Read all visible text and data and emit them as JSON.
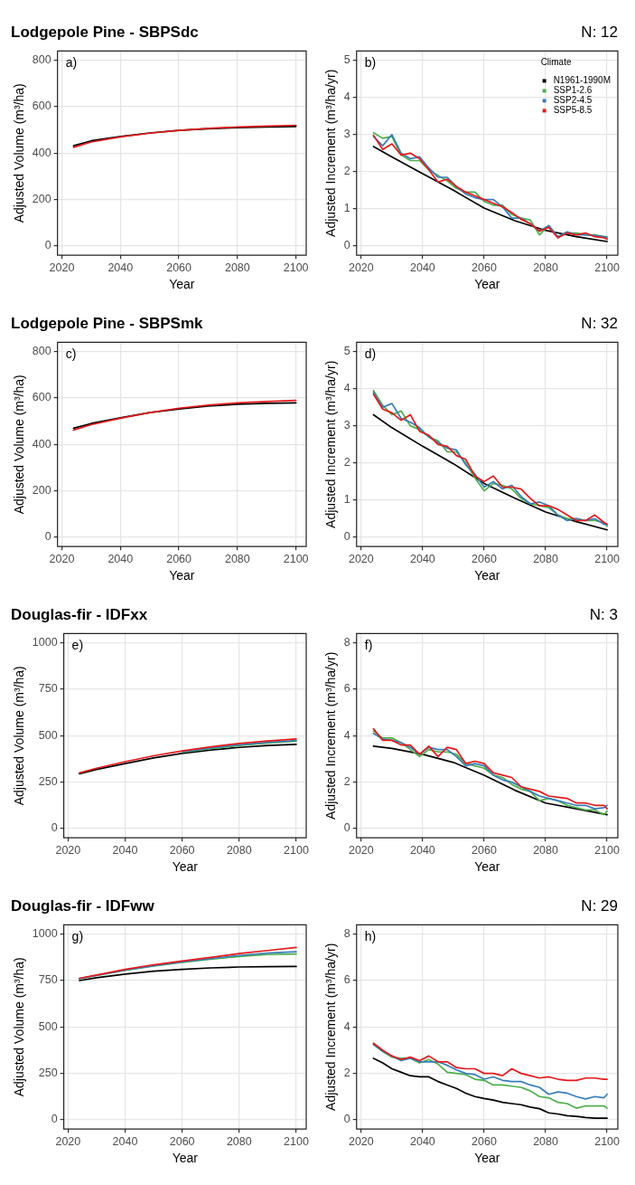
{
  "chart_data": [
    {
      "type": "line",
      "title": "Lodgepole Pine - SBPSdc",
      "xlabel": "Year",
      "ylabel": "Adjusted Volume (m³/ha)",
      "annotations": [
        "a)"
      ],
      "x": [
        2024,
        2030,
        2040,
        2050,
        2060,
        2070,
        2080,
        2090,
        2100
      ],
      "xlim": [
        2018.5,
        2103.5
      ],
      "xticks": [
        2020,
        2040,
        2060,
        2080,
        2100
      ],
      "ylim": [
        -40,
        840
      ],
      "yticks": [
        0,
        200,
        400,
        600,
        800
      ],
      "grid": true,
      "series": [
        {
          "color": "#000000",
          "values": [
            432,
            453,
            472,
            487,
            498,
            505,
            510,
            513,
            515
          ]
        },
        {
          "color": "#e41a1c",
          "values": [
            425,
            448,
            470,
            486,
            498,
            507,
            513,
            517,
            520
          ]
        }
      ]
    },
    {
      "type": "line",
      "title": "N: 12",
      "xlabel": "Year",
      "ylabel": "Adjusted Increment (m³/ha/yr)",
      "annotations": [
        "b)"
      ],
      "legend": "top right",
      "legend_title": "Climate",
      "x": [
        2024,
        2027,
        2030,
        2033,
        2036,
        2039,
        2042,
        2045,
        2048,
        2051,
        2054,
        2057,
        2060,
        2063,
        2066,
        2069,
        2072,
        2075,
        2078,
        2081,
        2084,
        2087,
        2090,
        2093,
        2096,
        2099,
        2100
      ],
      "xlim": [
        2018.5,
        2103.5
      ],
      "xticks": [
        2020,
        2040,
        2060,
        2080,
        2100
      ],
      "ylim": [
        -0.25,
        5.25
      ],
      "yticks": [
        0,
        1,
        2,
        3,
        4,
        5
      ],
      "grid": true,
      "series": [
        {
          "name": "N1961-1990M",
          "color": "#000000",
          "x": [
            2024,
            2030,
            2040,
            2050,
            2060,
            2070,
            2080,
            2090,
            2100
          ],
          "values": [
            2.68,
            2.4,
            1.95,
            1.5,
            1.02,
            0.68,
            0.42,
            0.25,
            0.12
          ]
        },
        {
          "name": "SSP1-2.6",
          "color": "#4daf4a",
          "values": [
            3.05,
            2.9,
            2.95,
            2.45,
            2.3,
            2.3,
            2.05,
            1.9,
            1.75,
            1.55,
            1.45,
            1.45,
            1.2,
            1.1,
            1.1,
            0.85,
            0.75,
            0.7,
            0.3,
            0.55,
            0.25,
            0.35,
            0.35,
            0.3,
            0.3,
            0.25,
            0.25
          ]
        },
        {
          "name": "SSP2-4.5",
          "color": "#377eb8",
          "values": [
            2.95,
            2.7,
            3.0,
            2.5,
            2.35,
            2.4,
            2.1,
            1.85,
            1.85,
            1.6,
            1.4,
            1.3,
            1.25,
            1.25,
            1.05,
            0.75,
            0.75,
            0.6,
            0.4,
            0.55,
            0.25,
            0.38,
            0.3,
            0.3,
            0.28,
            0.25,
            0.22
          ]
        },
        {
          "name": "SSP5-8.5",
          "color": "#e41a1c",
          "values": [
            2.98,
            2.6,
            2.75,
            2.45,
            2.5,
            2.35,
            2.05,
            1.72,
            1.8,
            1.6,
            1.45,
            1.35,
            1.25,
            1.15,
            1.05,
            0.9,
            0.72,
            0.6,
            0.4,
            0.5,
            0.22,
            0.35,
            0.3,
            0.35,
            0.25,
            0.22,
            0.18
          ]
        }
      ]
    },
    {
      "type": "line",
      "title": "Lodgepole Pine - SBPSmk",
      "xlabel": "Year",
      "ylabel": "Adjusted Volume (m³/ha)",
      "annotations": [
        "c)"
      ],
      "x": [
        2024,
        2030,
        2040,
        2050,
        2060,
        2070,
        2080,
        2090,
        2100
      ],
      "xlim": [
        2018.5,
        2103.5
      ],
      "xticks": [
        2020,
        2040,
        2060,
        2080,
        2100
      ],
      "ylim": [
        -40,
        840
      ],
      "yticks": [
        0,
        200,
        400,
        600,
        800
      ],
      "grid": true,
      "series": [
        {
          "color": "#000000",
          "values": [
            470,
            490,
            515,
            537,
            553,
            565,
            573,
            577,
            579
          ]
        },
        {
          "color": "#e41a1c",
          "values": [
            462,
            485,
            513,
            537,
            556,
            569,
            579,
            585,
            590
          ]
        }
      ]
    },
    {
      "type": "line",
      "title": "N: 32",
      "xlabel": "Year",
      "ylabel": "Adjusted Increment (m³/ha/yr)",
      "annotations": [
        "d)"
      ],
      "x": [
        2024,
        2027,
        2030,
        2033,
        2036,
        2039,
        2042,
        2045,
        2048,
        2051,
        2054,
        2057,
        2060,
        2063,
        2066,
        2069,
        2072,
        2075,
        2078,
        2081,
        2084,
        2087,
        2090,
        2093,
        2096,
        2099,
        2100
      ],
      "xlim": [
        2018.5,
        2103.5
      ],
      "xticks": [
        2020,
        2040,
        2060,
        2080,
        2100
      ],
      "ylim": [
        -0.25,
        5.25
      ],
      "yticks": [
        0,
        1,
        2,
        3,
        4,
        5
      ],
      "grid": true,
      "series": [
        {
          "color": "#000000",
          "x": [
            2024,
            2030,
            2040,
            2050,
            2060,
            2070,
            2080,
            2090,
            2100
          ],
          "values": [
            3.3,
            2.95,
            2.45,
            1.98,
            1.45,
            1.05,
            0.68,
            0.42,
            0.2
          ]
        },
        {
          "color": "#4daf4a",
          "values": [
            3.95,
            3.55,
            3.3,
            3.4,
            3.0,
            2.9,
            2.7,
            2.6,
            2.3,
            2.3,
            2.0,
            1.6,
            1.25,
            1.45,
            1.4,
            1.3,
            1.05,
            0.9,
            0.85,
            0.8,
            0.6,
            0.5,
            0.5,
            0.45,
            0.45,
            0.4,
            0.3
          ]
        },
        {
          "color": "#377eb8",
          "values": [
            3.9,
            3.5,
            3.6,
            3.2,
            3.1,
            2.95,
            2.7,
            2.55,
            2.4,
            2.35,
            1.95,
            1.7,
            1.35,
            1.5,
            1.3,
            1.4,
            1.1,
            0.9,
            0.95,
            0.85,
            0.6,
            0.45,
            0.5,
            0.45,
            0.5,
            0.35,
            0.35
          ]
        },
        {
          "color": "#e41a1c",
          "values": [
            3.85,
            3.45,
            3.35,
            3.15,
            3.3,
            2.85,
            2.75,
            2.5,
            2.45,
            2.2,
            2.1,
            1.65,
            1.5,
            1.65,
            1.35,
            1.35,
            1.3,
            1.05,
            0.85,
            0.85,
            0.75,
            0.6,
            0.45,
            0.45,
            0.6,
            0.4,
            0.35
          ]
        }
      ]
    },
    {
      "type": "line",
      "title": "Douglas-fir - IDFxx",
      "xlabel": "Year",
      "ylabel": "Adjusted Volume (m³/ha)",
      "annotations": [
        "e)"
      ],
      "x": [
        2024,
        2030,
        2040,
        2050,
        2060,
        2070,
        2080,
        2090,
        2100
      ],
      "xlim": [
        2018.5,
        2103.5
      ],
      "xticks": [
        2020,
        2040,
        2060,
        2080,
        2100
      ],
      "ylim": [
        -50,
        1050
      ],
      "yticks": [
        0,
        250,
        500,
        750,
        1000
      ],
      "grid": true,
      "series": [
        {
          "color": "#000000",
          "values": [
            295,
            318,
            350,
            380,
            405,
            423,
            437,
            447,
            453
          ]
        },
        {
          "color": "#4daf4a",
          "values": [
            null,
            null,
            null,
            null,
            410,
            430,
            447,
            460,
            470
          ]
        },
        {
          "color": "#377eb8",
          "values": [
            null,
            null,
            null,
            null,
            413,
            434,
            451,
            464,
            474
          ]
        },
        {
          "color": "#e41a1c",
          "values": [
            300,
            325,
            360,
            392,
            418,
            440,
            458,
            472,
            483
          ]
        }
      ]
    },
    {
      "type": "line",
      "title": "N: 3",
      "xlabel": "Year",
      "ylabel": "Adjusted Increment (m³/ha/yr)",
      "annotations": [
        "f)"
      ],
      "x": [
        2024,
        2027,
        2030,
        2033,
        2036,
        2039,
        2042,
        2045,
        2048,
        2051,
        2054,
        2057,
        2060,
        2063,
        2066,
        2069,
        2072,
        2075,
        2078,
        2081,
        2084,
        2087,
        2090,
        2093,
        2096,
        2099,
        2100
      ],
      "xlim": [
        2018.5,
        2103.5
      ],
      "xticks": [
        2020,
        2040,
        2060,
        2080,
        2100
      ],
      "ylim": [
        -0.4,
        8.4
      ],
      "yticks": [
        0,
        2,
        4,
        6,
        8
      ],
      "grid": true,
      "series": [
        {
          "color": "#000000",
          "x": [
            2024,
            2030,
            2040,
            2050,
            2060,
            2070,
            2080,
            2090,
            2100
          ],
          "values": [
            3.55,
            3.45,
            3.2,
            2.85,
            2.3,
            1.65,
            1.1,
            0.85,
            0.6
          ]
        },
        {
          "color": "#4daf4a",
          "values": [
            4.2,
            3.9,
            3.9,
            3.7,
            3.4,
            3.1,
            3.4,
            3.3,
            3.3,
            3.2,
            2.8,
            2.7,
            2.6,
            2.3,
            2.2,
            1.9,
            1.7,
            1.6,
            1.2,
            1.3,
            1.2,
            1.0,
            0.9,
            0.8,
            0.8,
            0.6,
            0.75
          ]
        },
        {
          "color": "#377eb8",
          "values": [
            4.1,
            3.85,
            3.8,
            3.7,
            3.5,
            3.2,
            3.5,
            3.4,
            3.4,
            3.1,
            2.7,
            2.8,
            2.7,
            2.3,
            2.1,
            2.0,
            1.8,
            1.6,
            1.4,
            1.3,
            1.2,
            1.1,
            1.0,
            1.0,
            0.85,
            0.9,
            1.0
          ]
        },
        {
          "color": "#e41a1c",
          "values": [
            4.3,
            3.8,
            3.8,
            3.6,
            3.6,
            3.2,
            3.55,
            3.1,
            3.5,
            3.4,
            2.8,
            2.9,
            2.8,
            2.4,
            2.3,
            2.2,
            1.8,
            1.7,
            1.6,
            1.4,
            1.35,
            1.3,
            1.1,
            1.1,
            1.0,
            1.0,
            0.85
          ]
        }
      ]
    },
    {
      "type": "line",
      "title": "Douglas-fir - IDFww",
      "xlabel": "Year",
      "ylabel": "Adjusted Volume (m³/ha)",
      "annotations": [
        "g)"
      ],
      "x": [
        2024,
        2030,
        2040,
        2050,
        2060,
        2070,
        2080,
        2090,
        2100
      ],
      "xlim": [
        2018.5,
        2103.5
      ],
      "xticks": [
        2020,
        2040,
        2060,
        2080,
        2100
      ],
      "ylim": [
        -50,
        1050
      ],
      "yticks": [
        0,
        250,
        500,
        750,
        1000
      ],
      "grid": true,
      "series": [
        {
          "color": "#000000",
          "values": [
            750,
            765,
            785,
            800,
            810,
            818,
            823,
            825,
            826
          ]
        },
        {
          "color": "#4daf4a",
          "values": [
            760,
            777,
            805,
            828,
            848,
            865,
            880,
            890,
            893
          ]
        },
        {
          "color": "#377eb8",
          "values": [
            760,
            778,
            806,
            830,
            850,
            868,
            885,
            898,
            905
          ]
        },
        {
          "color": "#e41a1c",
          "values": [
            762,
            780,
            810,
            835,
            855,
            875,
            895,
            912,
            928
          ]
        }
      ]
    },
    {
      "type": "line",
      "title": "N: 29",
      "xlabel": "Year",
      "ylabel": "Adjusted Increment (m³/ha/yr)",
      "annotations": [
        "h)"
      ],
      "x": [
        2024,
        2027,
        2030,
        2033,
        2036,
        2039,
        2042,
        2045,
        2048,
        2051,
        2054,
        2057,
        2060,
        2063,
        2066,
        2069,
        2072,
        2075,
        2078,
        2081,
        2084,
        2087,
        2090,
        2093,
        2096,
        2099,
        2100
      ],
      "xlim": [
        2018.5,
        2103.5
      ],
      "xticks": [
        2020,
        2040,
        2060,
        2080,
        2100
      ],
      "ylim": [
        -0.4,
        8.4
      ],
      "yticks": [
        0,
        2,
        4,
        6,
        8
      ],
      "grid": true,
      "series": [
        {
          "color": "#000000",
          "values": [
            2.65,
            2.45,
            2.2,
            2.05,
            1.9,
            1.85,
            1.85,
            1.65,
            1.5,
            1.35,
            1.15,
            1.0,
            0.92,
            0.85,
            0.75,
            0.7,
            0.65,
            0.55,
            0.48,
            0.3,
            0.25,
            0.18,
            0.15,
            0.1,
            0.07,
            0.07,
            0.07
          ]
        },
        {
          "color": "#4daf4a",
          "values": [
            3.25,
            2.95,
            2.7,
            2.65,
            2.65,
            2.45,
            2.6,
            2.4,
            2.05,
            2.0,
            1.95,
            1.75,
            1.7,
            1.5,
            1.5,
            1.45,
            1.4,
            1.25,
            1.0,
            0.95,
            0.75,
            0.7,
            0.5,
            0.6,
            0.6,
            0.6,
            0.5
          ]
        },
        {
          "color": "#377eb8",
          "values": [
            3.25,
            2.95,
            2.75,
            2.55,
            2.65,
            2.5,
            2.5,
            2.5,
            2.35,
            2.15,
            2.0,
            1.95,
            1.75,
            1.85,
            1.7,
            1.65,
            1.65,
            1.5,
            1.4,
            1.1,
            1.2,
            1.15,
            1.0,
            0.9,
            1.0,
            0.95,
            1.1
          ]
        },
        {
          "color": "#e41a1c",
          "values": [
            3.3,
            3.0,
            2.75,
            2.6,
            2.7,
            2.55,
            2.75,
            2.5,
            2.5,
            2.25,
            2.2,
            2.2,
            2.0,
            2.0,
            1.9,
            2.2,
            2.0,
            1.9,
            1.8,
            1.85,
            1.75,
            1.7,
            1.7,
            1.8,
            1.8,
            1.75,
            1.75
          ]
        }
      ]
    }
  ]
}
